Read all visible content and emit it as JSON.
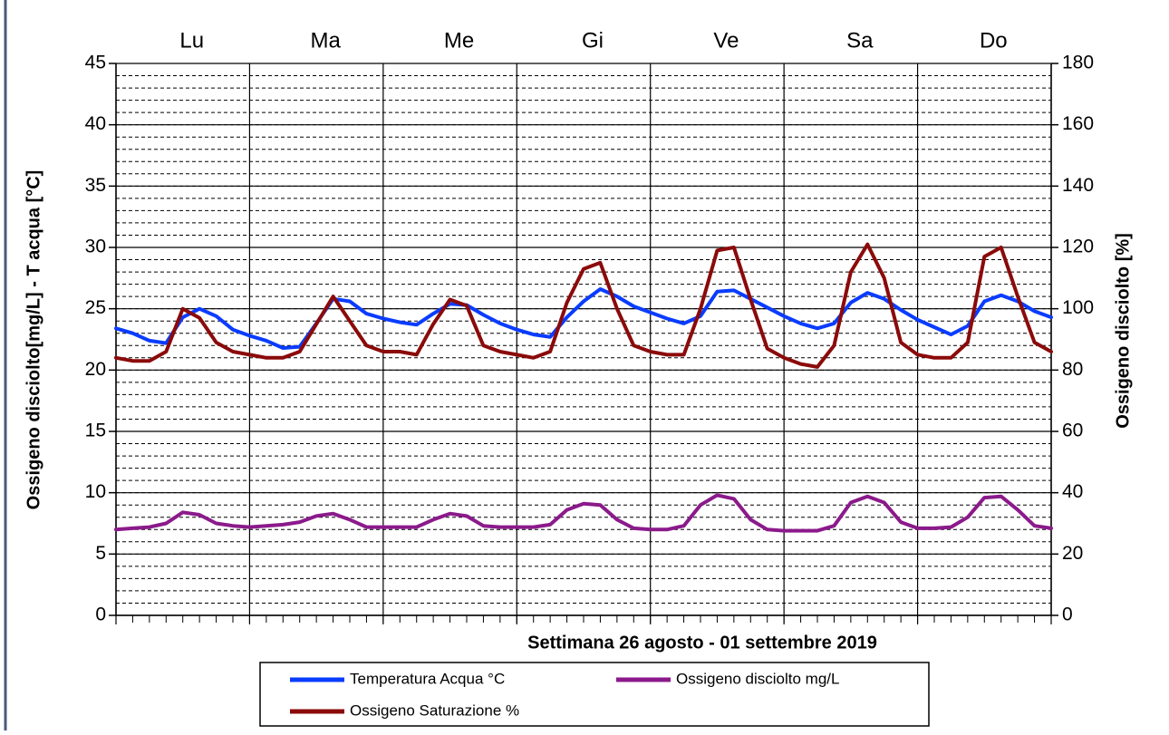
{
  "chart_data": {
    "type": "line",
    "xlabel": "Settimana 26 agosto - 01  settembre  2019",
    "ylabel": "Ossigeno disciolto[mg/L] - T acqua [°C]",
    "y2label": "Ossigeno disciolto [%]",
    "categories": [
      "Lu",
      "Ma",
      "Me",
      "Gi",
      "Ve",
      "Sa",
      "Do"
    ],
    "x": [
      0,
      3,
      6,
      9,
      12,
      15,
      18,
      21,
      24,
      27,
      30,
      33,
      36,
      39,
      42,
      45,
      48,
      51,
      54,
      57,
      60,
      63,
      66,
      69,
      72,
      75,
      78,
      81,
      84,
      87,
      90,
      93,
      96,
      99,
      102,
      105,
      108,
      111,
      114,
      117,
      120,
      123,
      126,
      129,
      132,
      135,
      138,
      141,
      144,
      147,
      150,
      153,
      156,
      159,
      162,
      165,
      168
    ],
    "xlim": [
      0,
      168
    ],
    "xticks": [
      0,
      24,
      48,
      72,
      96,
      120,
      144,
      168
    ],
    "xminorticks": [
      0,
      3,
      6,
      9,
      12,
      15,
      18,
      21,
      24,
      27,
      30,
      33,
      36,
      39,
      42,
      45,
      48,
      51,
      54,
      57,
      60,
      63,
      66,
      69,
      72,
      75,
      78,
      81,
      84,
      87,
      90,
      93,
      96,
      99,
      102,
      105,
      108,
      111,
      114,
      117,
      120,
      123,
      126,
      129,
      132,
      135,
      138,
      141,
      144,
      147,
      150,
      153,
      156,
      159,
      162,
      165,
      168
    ],
    "ylim": [
      0,
      45
    ],
    "yticks": [
      0,
      5,
      10,
      15,
      20,
      25,
      30,
      35,
      40,
      45
    ],
    "yminorticks": [
      0,
      1,
      2,
      3,
      4,
      5,
      6,
      7,
      8,
      9,
      10,
      11,
      12,
      13,
      14,
      15,
      16,
      17,
      18,
      19,
      20,
      21,
      22,
      23,
      24,
      25,
      26,
      27,
      28,
      29,
      30,
      31,
      32,
      33,
      34,
      35,
      36,
      37,
      38,
      39,
      40,
      41,
      42,
      43,
      44,
      45
    ],
    "y2lim": [
      0,
      180
    ],
    "y2ticks": [
      0,
      20,
      40,
      60,
      80,
      100,
      120,
      140,
      160,
      180
    ],
    "grid": true,
    "series": [
      {
        "name": "Temperatura Acqua °C",
        "color": "#0a3cff",
        "values": [
          23.4,
          23.0,
          22.4,
          22.2,
          24.3,
          25.0,
          24.4,
          23.3,
          22.8,
          22.4,
          21.8,
          21.9,
          23.8,
          25.8,
          25.6,
          24.6,
          24.2,
          23.9,
          23.7,
          24.6,
          25.4,
          25.3,
          24.5,
          23.8,
          23.3,
          22.9,
          22.7,
          24.3,
          25.6,
          26.6,
          26.0,
          25.2,
          24.7,
          24.2,
          23.8,
          24.4,
          26.4,
          26.5,
          25.8,
          25.1,
          24.4,
          23.8,
          23.4,
          23.8,
          25.5,
          26.3,
          25.8,
          24.9,
          24.1,
          23.5,
          22.9,
          23.6,
          25.6,
          26.1,
          25.6,
          24.8,
          24.3
        ]
      },
      {
        "name": "Ossigeno disciolto mg/L",
        "color": "#8b1a8b",
        "values": [
          7.0,
          7.1,
          7.2,
          7.5,
          8.4,
          8.2,
          7.5,
          7.3,
          7.2,
          7.3,
          7.4,
          7.6,
          8.1,
          8.3,
          7.8,
          7.2,
          7.2,
          7.2,
          7.2,
          7.8,
          8.3,
          8.1,
          7.3,
          7.2,
          7.2,
          7.2,
          7.4,
          8.6,
          9.1,
          9.0,
          7.8,
          7.1,
          7.0,
          7.0,
          7.3,
          9.0,
          9.8,
          9.5,
          7.8,
          7.0,
          6.9,
          6.9,
          6.9,
          7.3,
          9.2,
          9.7,
          9.2,
          7.6,
          7.1,
          7.1,
          7.2,
          8.0,
          9.6,
          9.7,
          8.6,
          7.3,
          7.1
        ]
      },
      {
        "name": "Ossigeno Saturazione %",
        "color": "#8b0a0a",
        "axis": "y2",
        "values": [
          84,
          83,
          83,
          86,
          100,
          97,
          89,
          86,
          85,
          84,
          84,
          86,
          95,
          104,
          96,
          88,
          86,
          86,
          85,
          95,
          103,
          101,
          88,
          86,
          85,
          84,
          86,
          102,
          113,
          115,
          100,
          88,
          86,
          85,
          85,
          100,
          119,
          120,
          103,
          87,
          84,
          82,
          81,
          88,
          112,
          121,
          110,
          89,
          85,
          84,
          84,
          89,
          117,
          120,
          104,
          89,
          86
        ]
      }
    ]
  }
}
